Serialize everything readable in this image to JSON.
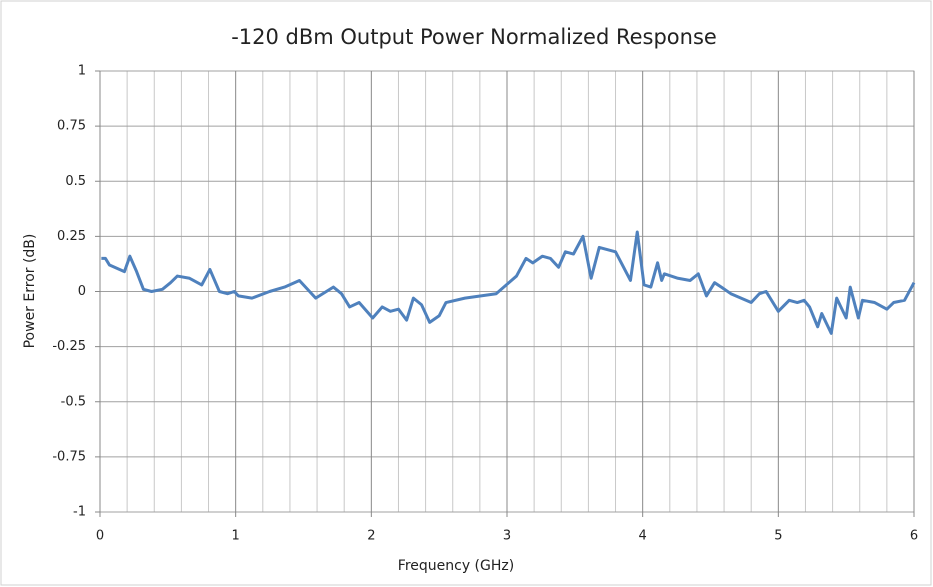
{
  "chart_data": {
    "type": "line",
    "title": "-120 dBm Output Power Normalized Response",
    "x_label": "Frequency (GHz)",
    "y_label": "Power Error (dB)",
    "xlim": [
      0,
      6
    ],
    "xticks": [
      0,
      1,
      2,
      3,
      4,
      5,
      6
    ],
    "ylim": [
      -1,
      1
    ],
    "yticks": [
      -1,
      -0.75,
      -0.5,
      -0.25,
      0,
      0.25,
      0.5,
      0.75,
      1
    ],
    "grid": true,
    "minor_grid_per_major": 5,
    "x": [
      0.01,
      0.04,
      0.07,
      0.18,
      0.22,
      0.27,
      0.32,
      0.38,
      0.46,
      0.52,
      0.57,
      0.66,
      0.75,
      0.81,
      0.88,
      0.94,
      0.99,
      1.02,
      1.12,
      1.25,
      1.36,
      1.47,
      1.59,
      1.72,
      1.78,
      1.84,
      1.91,
      2.01,
      2.08,
      2.14,
      2.2,
      2.26,
      2.31,
      2.37,
      2.43,
      2.5,
      2.55,
      2.69,
      2.92,
      3.07,
      3.14,
      3.19,
      3.26,
      3.32,
      3.38,
      3.43,
      3.49,
      3.56,
      3.62,
      3.68,
      3.8,
      3.91,
      3.96,
      4.01,
      4.06,
      4.11,
      4.14,
      4.16,
      4.26,
      4.35,
      4.41,
      4.47,
      4.53,
      4.58,
      4.65,
      4.8,
      4.86,
      4.91,
      5.0,
      5.08,
      5.14,
      5.19,
      5.23,
      5.29,
      5.32,
      5.39,
      5.43,
      5.5,
      5.53,
      5.59,
      5.62,
      5.71,
      5.8,
      5.85,
      5.93,
      6.0
    ],
    "series": [
      {
        "name": "Power Error",
        "color": "#4f81bd",
        "values": [
          0.15,
          0.15,
          0.12,
          0.09,
          0.16,
          0.09,
          0.01,
          0.0,
          0.01,
          0.04,
          0.07,
          0.06,
          0.03,
          0.1,
          0.0,
          -0.01,
          0.0,
          -0.02,
          -0.03,
          0.0,
          0.02,
          0.05,
          -0.03,
          0.02,
          -0.01,
          -0.07,
          -0.05,
          -0.12,
          -0.07,
          -0.09,
          -0.08,
          -0.13,
          -0.03,
          -0.06,
          -0.14,
          -0.11,
          -0.05,
          -0.03,
          -0.01,
          0.07,
          0.15,
          0.13,
          0.16,
          0.15,
          0.11,
          0.18,
          0.17,
          0.25,
          0.06,
          0.2,
          0.18,
          0.05,
          0.27,
          0.03,
          0.02,
          0.13,
          0.05,
          0.08,
          0.06,
          0.05,
          0.08,
          -0.02,
          0.04,
          0.02,
          -0.01,
          -0.05,
          -0.01,
          0.0,
          -0.09,
          -0.04,
          -0.05,
          -0.04,
          -0.07,
          -0.16,
          -0.1,
          -0.19,
          -0.03,
          -0.12,
          0.02,
          -0.12,
          -0.04,
          -0.05,
          -0.08,
          -0.05,
          -0.04,
          0.04
        ]
      }
    ]
  }
}
